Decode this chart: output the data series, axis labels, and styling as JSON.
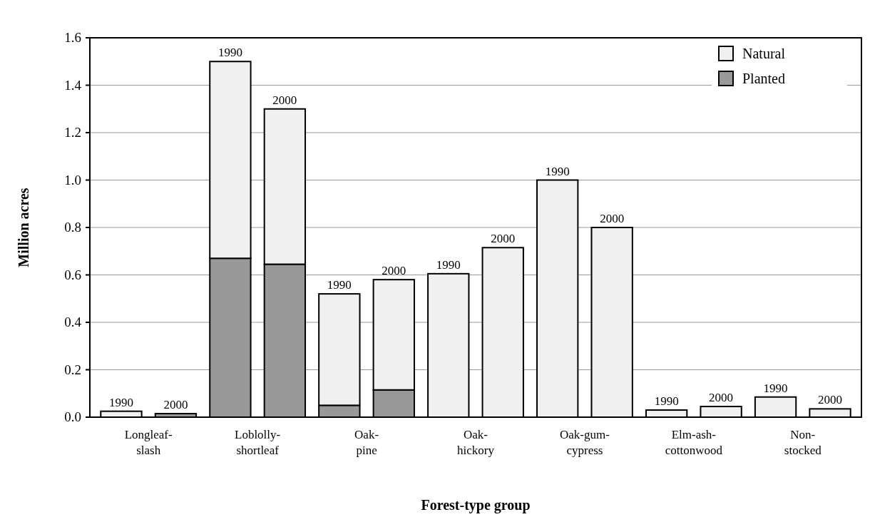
{
  "chart_data": {
    "type": "bar",
    "stacked": true,
    "xlabel": "Forest-type group",
    "ylabel": "Million acres",
    "categories": [
      "Longleaf-\nslash",
      null,
      "Loblolly-\nshortleaf",
      null,
      "Oak-\npine",
      null,
      "Oak-\nhickory",
      null,
      "Oak-gum-\ncypress",
      null,
      "Elm-ash-\ncottonwood",
      null,
      "Non-\nstocked",
      null
    ],
    "series": [
      {
        "name": "Planted",
        "color": "#999999",
        "values": [
          null,
          0.015,
          0.67,
          0.645,
          0.05,
          0.115,
          0,
          0,
          0,
          0,
          0,
          0,
          0,
          0
        ]
      },
      {
        "name": "Natural",
        "color": "#f0f0f0",
        "values": [
          0.025,
          0,
          0.83,
          0.655,
          0.47,
          0.465,
          0.605,
          0.715,
          1.0,
          0.8,
          0.03,
          0.045,
          0.085,
          0.035
        ]
      }
    ],
    "annotations": [
      "1990",
      "2000",
      "1990",
      "2000",
      "1990",
      "2000",
      "1990",
      "2000",
      "1990",
      "2000",
      "1990",
      "2000",
      "1990",
      "2000"
    ],
    "ylim": [
      0,
      1.6
    ],
    "yticks": [
      {
        "value": 0,
        "label": "0.0"
      },
      0.2,
      0.4,
      0.6,
      0.8,
      {
        "value": 1,
        "label": "1.0"
      },
      1.2,
      1.4,
      1.6
    ],
    "grid": "y",
    "legend": "top right"
  }
}
